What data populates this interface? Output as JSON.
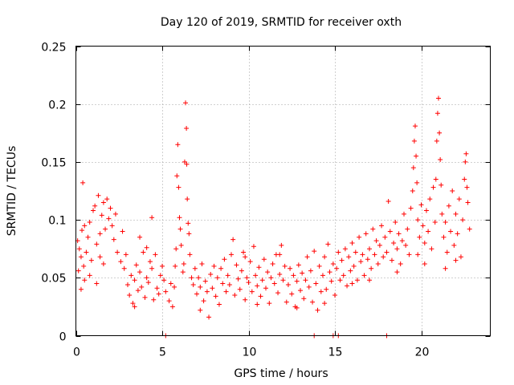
{
  "chart_data": {
    "type": "scatter",
    "title": "Day 120 of 2019, SRMTID for receiver oxth",
    "xlabel": "GPS time / hours",
    "ylabel": "SRMTID / TECUs",
    "xlim": [
      0,
      24
    ],
    "ylim": [
      0,
      0.25
    ],
    "xticks": [
      0,
      5,
      10,
      15,
      20
    ],
    "xtick_labels": [
      "0",
      "5",
      "10",
      "15",
      "20"
    ],
    "yticks": [
      0,
      0.05,
      0.1,
      0.15,
      0.2,
      0.25
    ],
    "ytick_labels": [
      "0",
      "0.05",
      "0.1",
      "0.15",
      "0.2",
      "0.25"
    ],
    "grid": true,
    "marker": "+",
    "colors": {
      "series": "#ff0000",
      "grid": "#a0a0a0",
      "axis": "#000000"
    },
    "series": [
      {
        "name": "SRMTID",
        "points": [
          [
            0.1,
            0.082
          ],
          [
            0.2,
            0.075
          ],
          [
            0.3,
            0.068
          ],
          [
            0.35,
            0.091
          ],
          [
            0.4,
            0.132
          ],
          [
            0.45,
            0.06
          ],
          [
            0.5,
            0.095
          ],
          [
            0.6,
            0.072
          ],
          [
            0.7,
            0.085
          ],
          [
            0.8,
            0.098
          ],
          [
            0.9,
            0.065
          ],
          [
            1.0,
            0.108
          ],
          [
            1.1,
            0.112
          ],
          [
            1.2,
            0.079
          ],
          [
            1.3,
            0.121
          ],
          [
            1.4,
            0.088
          ],
          [
            1.5,
            0.104
          ],
          [
            1.6,
            0.115
          ],
          [
            1.7,
            0.092
          ],
          [
            1.8,
            0.118
          ],
          [
            1.9,
            0.101
          ],
          [
            2.0,
            0.11
          ],
          [
            2.1,
            0.095
          ],
          [
            2.2,
            0.083
          ],
          [
            2.3,
            0.105
          ],
          [
            0.15,
            0.056
          ],
          [
            0.5,
            0.048
          ],
          [
            0.8,
            0.052
          ],
          [
            1.2,
            0.045
          ],
          [
            1.6,
            0.062
          ],
          [
            2.4,
            0.072
          ],
          [
            2.6,
            0.064
          ],
          [
            2.8,
            0.058
          ],
          [
            2.9,
            0.07
          ],
          [
            3.0,
            0.044
          ],
          [
            3.1,
            0.035
          ],
          [
            3.2,
            0.052
          ],
          [
            3.3,
            0.028
          ],
          [
            3.4,
            0.048
          ],
          [
            3.5,
            0.061
          ],
          [
            3.6,
            0.039
          ],
          [
            3.7,
            0.055
          ],
          [
            3.8,
            0.042
          ],
          [
            3.9,
            0.072
          ],
          [
            4.0,
            0.033
          ],
          [
            4.1,
            0.05
          ],
          [
            4.2,
            0.046
          ],
          [
            4.3,
            0.064
          ],
          [
            4.4,
            0.058
          ],
          [
            4.5,
            0.031
          ],
          [
            4.6,
            0.07
          ],
          [
            4.7,
            0.041
          ],
          [
            4.8,
            0.036
          ],
          [
            4.9,
            0.052
          ],
          [
            5.0,
            0.06
          ],
          [
            5.1,
            0.048
          ],
          [
            4.4,
            0.102
          ],
          [
            3.7,
            0.085
          ],
          [
            4.1,
            0.076
          ],
          [
            5.2,
            0.038
          ],
          [
            5.4,
            0.03
          ],
          [
            5.5,
            0.045
          ],
          [
            5.6,
            0.025
          ],
          [
            5.7,
            0.042
          ],
          [
            5.75,
            0.06
          ],
          [
            5.8,
            0.075
          ],
          [
            5.85,
            0.138
          ],
          [
            5.9,
            0.165
          ],
          [
            5.95,
            0.128
          ],
          [
            6.0,
            0.102
          ],
          [
            6.05,
            0.092
          ],
          [
            6.1,
            0.078
          ],
          [
            6.2,
            0.055
          ],
          [
            6.25,
            0.062
          ],
          [
            6.3,
            0.15
          ],
          [
            6.35,
            0.201
          ],
          [
            6.4,
            0.179
          ],
          [
            6.42,
            0.148
          ],
          [
            6.45,
            0.118
          ],
          [
            6.5,
            0.097
          ],
          [
            6.55,
            0.088
          ],
          [
            6.6,
            0.07
          ],
          [
            6.7,
            0.05
          ],
          [
            6.8,
            0.044
          ],
          [
            6.9,
            0.058
          ],
          [
            7.0,
            0.036
          ],
          [
            7.1,
            0.05
          ],
          [
            7.2,
            0.042
          ],
          [
            7.3,
            0.062
          ],
          [
            7.4,
            0.03
          ],
          [
            7.5,
            0.047
          ],
          [
            7.6,
            0.038
          ],
          [
            7.7,
            0.016
          ],
          [
            7.8,
            0.053
          ],
          [
            7.9,
            0.041
          ],
          [
            8.0,
            0.06
          ],
          [
            8.1,
            0.034
          ],
          [
            8.2,
            0.05
          ],
          [
            8.3,
            0.027
          ],
          [
            8.4,
            0.058
          ],
          [
            8.5,
            0.045
          ],
          [
            8.6,
            0.066
          ],
          [
            8.7,
            0.038
          ],
          [
            8.8,
            0.052
          ],
          [
            8.9,
            0.044
          ],
          [
            9.0,
            0.07
          ],
          [
            9.1,
            0.083
          ],
          [
            9.2,
            0.035
          ],
          [
            9.3,
            0.061
          ],
          [
            9.4,
            0.049
          ],
          [
            9.5,
            0.04
          ],
          [
            9.6,
            0.056
          ],
          [
            9.7,
            0.072
          ],
          [
            9.8,
            0.031
          ],
          [
            9.9,
            0.05
          ],
          [
            10.0,
            0.046
          ],
          [
            10.1,
            0.064
          ],
          [
            10.2,
            0.038
          ],
          [
            10.3,
            0.077
          ],
          [
            10.4,
            0.052
          ],
          [
            10.5,
            0.043
          ],
          [
            10.6,
            0.059
          ],
          [
            10.7,
            0.034
          ],
          [
            10.8,
            0.048
          ],
          [
            10.9,
            0.066
          ],
          [
            11.0,
            0.041
          ],
          [
            11.1,
            0.055
          ],
          [
            11.2,
            0.028
          ],
          [
            11.3,
            0.05
          ],
          [
            11.4,
            0.062
          ],
          [
            11.5,
            0.045
          ],
          [
            11.6,
            0.07
          ],
          [
            11.7,
            0.037
          ],
          [
            11.8,
            0.053
          ],
          [
            11.9,
            0.078
          ],
          [
            12.0,
            0.048
          ],
          [
            12.1,
            0.06
          ],
          [
            12.2,
            0.029
          ],
          [
            12.3,
            0.044
          ],
          [
            12.4,
            0.058
          ],
          [
            12.5,
            0.036
          ],
          [
            12.6,
            0.052
          ],
          [
            12.7,
            0.025
          ],
          [
            12.8,
            0.047
          ],
          [
            12.9,
            0.061
          ],
          [
            13.0,
            0.039
          ],
          [
            13.1,
            0.054
          ],
          [
            13.2,
            0.032
          ],
          [
            13.3,
            0.048
          ],
          [
            13.4,
            0.068
          ],
          [
            13.5,
            0.042
          ],
          [
            13.6,
            0.056
          ],
          [
            13.7,
            0.029
          ],
          [
            13.8,
            0.073
          ],
          [
            13.9,
            0.045
          ],
          [
            14.0,
            0.022
          ],
          [
            14.1,
            0.06
          ],
          [
            14.2,
            0.038
          ],
          [
            14.3,
            0.052
          ],
          [
            14.4,
            0.068
          ],
          [
            14.5,
            0.04
          ],
          [
            14.6,
            0.079
          ],
          [
            14.7,
            0.055
          ],
          [
            14.8,
            0.047
          ],
          [
            14.9,
            0.062
          ],
          [
            15.0,
            0.035
          ],
          [
            15.1,
            0.058
          ],
          [
            15.2,
            0.072
          ],
          [
            15.3,
            0.048
          ],
          [
            15.4,
            0.065
          ],
          [
            15.5,
            0.052
          ],
          [
            15.6,
            0.075
          ],
          [
            15.7,
            0.043
          ],
          [
            15.8,
            0.068
          ],
          [
            15.9,
            0.056
          ],
          [
            16.0,
            0.08
          ],
          [
            16.1,
            0.06
          ],
          [
            16.2,
            0.072
          ],
          [
            16.3,
            0.048
          ],
          [
            16.4,
            0.085
          ],
          [
            16.5,
            0.064
          ],
          [
            16.6,
            0.07
          ],
          [
            16.7,
            0.052
          ],
          [
            16.8,
            0.088
          ],
          [
            16.9,
            0.066
          ],
          [
            17.0,
            0.075
          ],
          [
            17.1,
            0.058
          ],
          [
            17.2,
            0.092
          ],
          [
            17.3,
            0.07
          ],
          [
            17.4,
            0.082
          ],
          [
            17.5,
            0.062
          ],
          [
            17.6,
            0.078
          ],
          [
            17.7,
            0.095
          ],
          [
            17.8,
            0.068
          ],
          [
            17.9,
            0.085
          ],
          [
            18.0,
            0.072
          ],
          [
            18.1,
            0.116
          ],
          [
            18.2,
            0.09
          ],
          [
            18.3,
            0.065
          ],
          [
            18.4,
            0.08
          ],
          [
            18.5,
            0.098
          ],
          [
            18.6,
            0.075
          ],
          [
            18.7,
            0.088
          ],
          [
            18.8,
            0.062
          ],
          [
            18.9,
            0.082
          ],
          [
            19.0,
            0.105
          ],
          [
            19.1,
            0.078
          ],
          [
            19.2,
            0.092
          ],
          [
            19.3,
            0.07
          ],
          [
            19.4,
            0.11
          ],
          [
            19.5,
            0.125
          ],
          [
            19.55,
            0.145
          ],
          [
            19.6,
            0.168
          ],
          [
            19.65,
            0.181
          ],
          [
            19.7,
            0.155
          ],
          [
            19.75,
            0.132
          ],
          [
            19.8,
            0.1
          ],
          [
            19.9,
            0.085
          ],
          [
            20.0,
            0.113
          ],
          [
            20.1,
            0.095
          ],
          [
            20.2,
            0.08
          ],
          [
            20.3,
            0.108
          ],
          [
            20.4,
            0.09
          ],
          [
            20.5,
            0.118
          ],
          [
            20.6,
            0.075
          ],
          [
            20.7,
            0.128
          ],
          [
            20.8,
            0.098
          ],
          [
            20.85,
            0.135
          ],
          [
            20.9,
            0.168
          ],
          [
            20.95,
            0.192
          ],
          [
            21.0,
            0.205
          ],
          [
            21.05,
            0.175
          ],
          [
            21.1,
            0.152
          ],
          [
            21.15,
            0.13
          ],
          [
            21.2,
            0.105
          ],
          [
            21.3,
            0.085
          ],
          [
            21.4,
            0.098
          ],
          [
            21.5,
            0.072
          ],
          [
            21.6,
            0.112
          ],
          [
            21.7,
            0.09
          ],
          [
            21.8,
            0.125
          ],
          [
            21.9,
            0.078
          ],
          [
            22.0,
            0.105
          ],
          [
            22.1,
            0.088
          ],
          [
            22.2,
            0.118
          ],
          [
            22.3,
            0.068
          ],
          [
            22.4,
            0.1
          ],
          [
            22.5,
            0.135
          ],
          [
            22.55,
            0.15
          ],
          [
            22.6,
            0.157
          ],
          [
            22.65,
            0.128
          ],
          [
            22.7,
            0.115
          ],
          [
            22.8,
            0.092
          ],
          [
            20.2,
            0.062
          ],
          [
            21.4,
            0.058
          ],
          [
            22.0,
            0.065
          ],
          [
            17.0,
            0.048
          ],
          [
            16.0,
            0.045
          ],
          [
            18.6,
            0.055
          ],
          [
            19.8,
            0.07
          ],
          [
            3.4,
            0.025
          ],
          [
            7.2,
            0.022
          ],
          [
            10.5,
            0.027
          ],
          [
            12.8,
            0.024
          ],
          [
            14.4,
            0.028
          ],
          [
            2.7,
            0.09
          ],
          [
            1.4,
            0.068
          ],
          [
            0.3,
            0.04
          ],
          [
            11.8,
            0.07
          ],
          [
            9.8,
            0.068
          ],
          [
            5.2,
            0.0
          ],
          [
            13.8,
            0.0
          ],
          [
            14.9,
            0.0
          ],
          [
            15.2,
            0.0
          ],
          [
            18.0,
            0.0
          ]
        ]
      }
    ]
  }
}
